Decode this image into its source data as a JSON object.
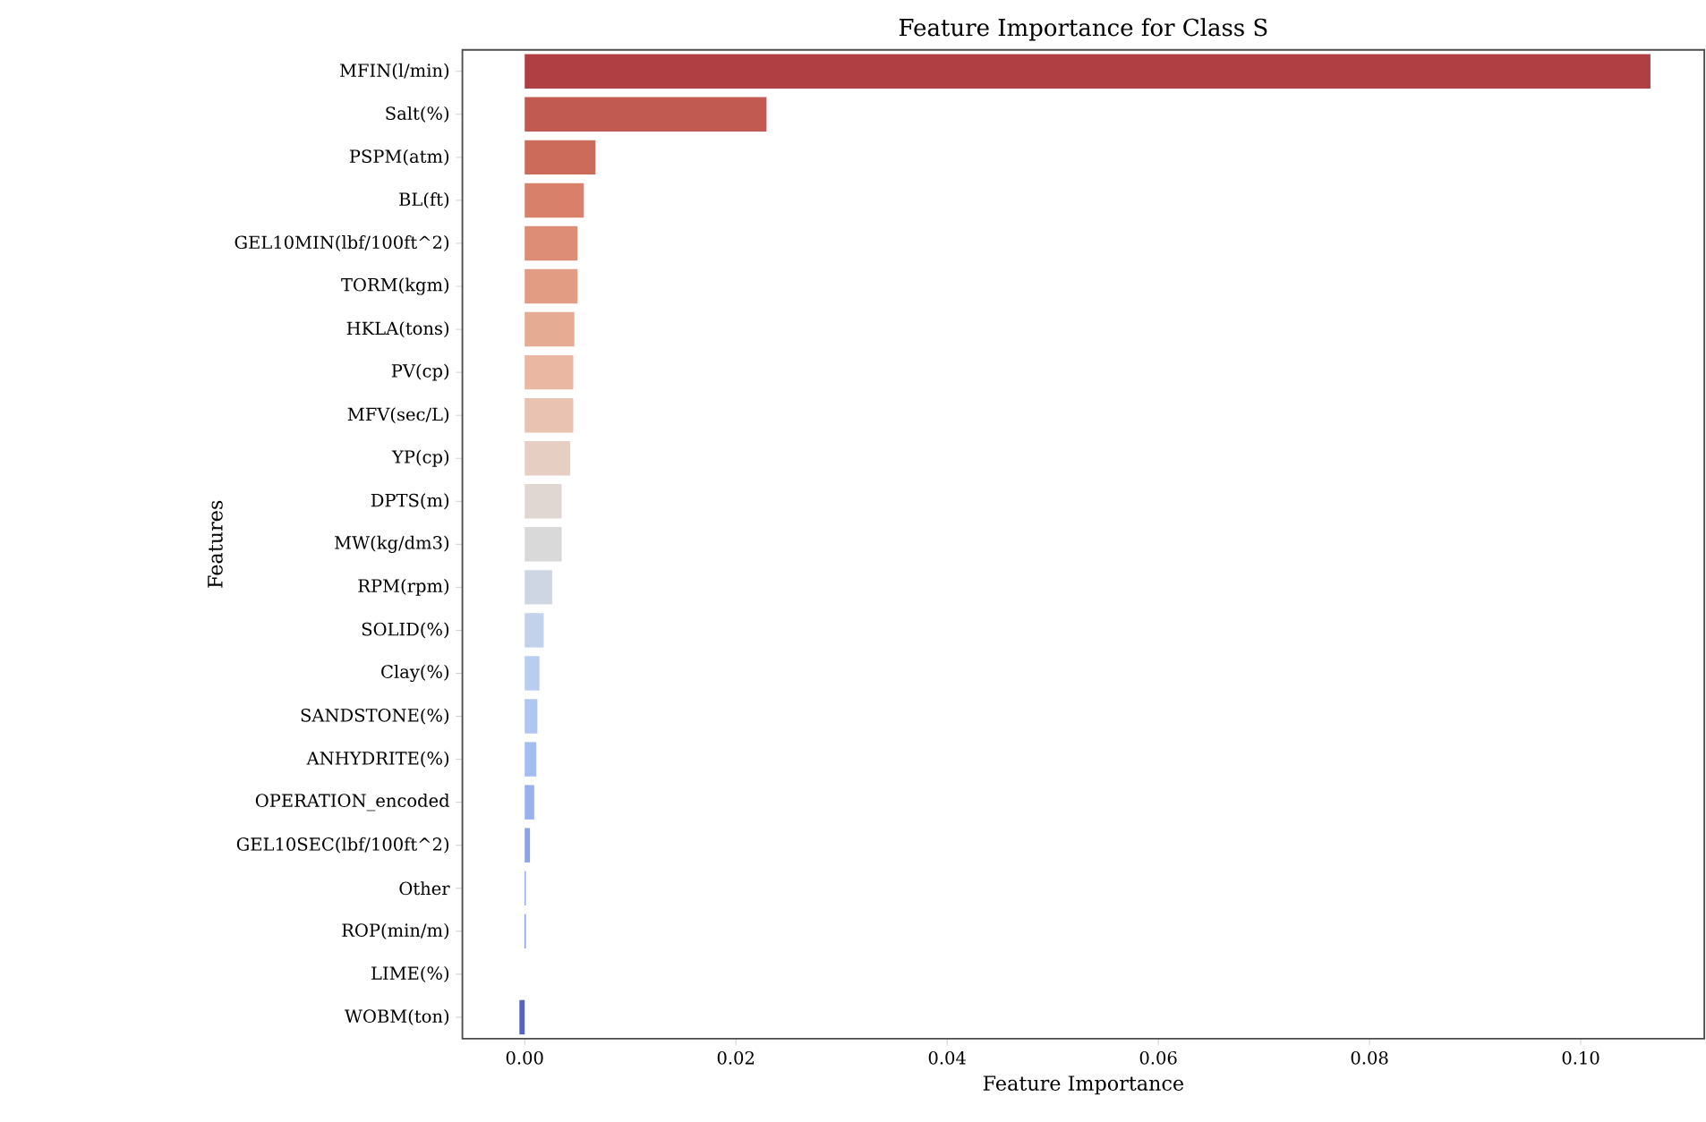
{
  "chart_data": {
    "type": "bar",
    "orientation": "horizontal",
    "title": "Feature Importance for Class S",
    "xlabel": "Feature Importance",
    "ylabel": "Features",
    "categories": [
      "MFIN(l/min)",
      "Salt(%)",
      "PSPM(atm)",
      "BL(ft)",
      "GEL10MIN(lbf/100ft^2)",
      "TORM(kgm)",
      "HKLA(tons)",
      "PV(cp)",
      "MFV(sec/L)",
      "YP(cp)",
      "DPTS(m)",
      "MW(kg/dm3)",
      "RPM(rpm)",
      "SOLID(%)",
      "Clay(%)",
      "SANDSTONE(%)",
      "ANHYDRITE(%)",
      "OPERATION_encoded",
      "GEL10SEC(lbf/100ft^2)",
      "Other",
      "ROP(min/m)",
      "LIME(%)",
      "WOBM(ton)"
    ],
    "values": [
      0.1066,
      0.0229,
      0.0067,
      0.0056,
      0.005,
      0.005,
      0.0047,
      0.0046,
      0.0046,
      0.0043,
      0.0035,
      0.0035,
      0.0026,
      0.0018,
      0.0014,
      0.0012,
      0.0011,
      0.0009,
      0.0005,
      0.0001,
      0.0001,
      0,
      -0.0005
    ],
    "colors": [
      "#b03f43",
      "#c15a50",
      "#cd6b5a",
      "#d8806a",
      "#dd8c75",
      "#e29c83",
      "#e6ab93",
      "#e9b7a2",
      "#e9c2b1",
      "#e6cec2",
      "#e0d7d2",
      "#d9d9da",
      "#ced5e3",
      "#c3d2eb",
      "#b9cdf0",
      "#afc6f1",
      "#a4bdf0",
      "#97b1ec",
      "#8aa4e6",
      "#7f96df",
      "#7387d5",
      "#6677ca",
      "#5664c0"
    ],
    "xlim": [
      -0.0059,
      0.1117
    ],
    "xticks": [
      {
        "value": 0,
        "label": "0.00"
      },
      {
        "value": 0.02,
        "label": "0.02"
      },
      {
        "value": 0.04,
        "label": "0.04"
      },
      {
        "value": 0.06,
        "label": "0.06"
      },
      {
        "value": 0.08,
        "label": "0.08"
      },
      {
        "value": 0.1,
        "label": "0.10"
      }
    ]
  }
}
